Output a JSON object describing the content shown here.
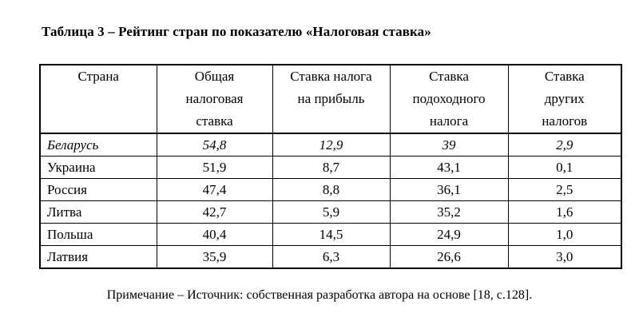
{
  "document": {
    "title": "Таблица 3 – Рейтинг стран по показателю «Налоговая ставка»",
    "note": "Примечание – Источник: собственная разработка автора на основе [18, с.128]."
  },
  "table": {
    "columns": [
      "Страна",
      "Общая\nналоговая\nставка",
      "Ставка налога\nна прибыль",
      "Ставка\nподоходного\nналога",
      "Ставка\nдругих\nналогов"
    ],
    "rows": [
      {
        "country": "Беларусь",
        "values": [
          "54,8",
          "12,9",
          "39",
          "2,9"
        ],
        "italic": true
      },
      {
        "country": "Украина",
        "values": [
          "51,9",
          "8,7",
          "43,1",
          "0,1"
        ],
        "italic": false
      },
      {
        "country": "Россия",
        "values": [
          "47,4",
          "8,8",
          "36,1",
          "2,5"
        ],
        "italic": false
      },
      {
        "country": "Литва",
        "values": [
          "42,7",
          "5,9",
          "35,2",
          "1,6"
        ],
        "italic": false
      },
      {
        "country": "Польша",
        "values": [
          "40,4",
          "14,5",
          "24,9",
          "1,0"
        ],
        "italic": false
      },
      {
        "country": "Латвия",
        "values": [
          "35,9",
          "6,3",
          "26,6",
          "3,0"
        ],
        "italic": false
      }
    ]
  }
}
